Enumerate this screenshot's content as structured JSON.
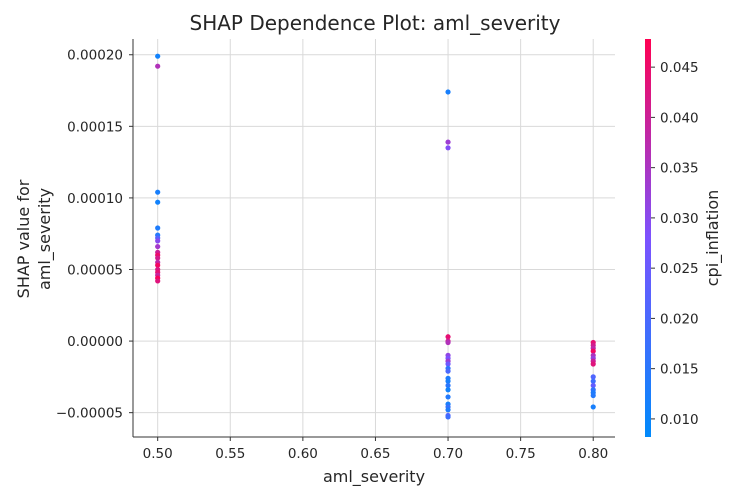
{
  "chart_data": {
    "type": "scatter",
    "title": "SHAP Dependence Plot: aml_severity",
    "xlabel": "aml_severity",
    "ylabel_lines": [
      "SHAP value for",
      "aml_severity"
    ],
    "xlim": [
      0.483,
      0.815
    ],
    "ylim": [
      -6.7e-05,
      0.000211
    ],
    "x_ticks": [
      0.5,
      0.55,
      0.6,
      0.65,
      0.7,
      0.75,
      0.8
    ],
    "x_tick_labels": [
      "0.50",
      "0.55",
      "0.60",
      "0.65",
      "0.70",
      "0.75",
      "0.80"
    ],
    "y_ticks": [
      -5e-05,
      0.0,
      5e-05,
      0.0001,
      0.00015,
      0.0002
    ],
    "y_tick_labels": [
      "−0.00005",
      "0.00000",
      "0.00005",
      "0.00010",
      "0.00015",
      "0.00020"
    ],
    "grid": true,
    "colorbar": {
      "label": "cpi_inflation",
      "range": [
        0.0082,
        0.0478
      ],
      "ticks": [
        0.01,
        0.015,
        0.02,
        0.025,
        0.03,
        0.035,
        0.04,
        0.045
      ],
      "tick_labels": [
        "0.010",
        "0.015",
        "0.020",
        "0.025",
        "0.030",
        "0.035",
        "0.040",
        "0.045"
      ],
      "colors": [
        "#008afb",
        "#7c52ff",
        "#ff0052"
      ]
    },
    "points": [
      {
        "x": 0.5,
        "y": 0.000199,
        "c": 0.011
      },
      {
        "x": 0.5,
        "y": 0.000192,
        "c": 0.036
      },
      {
        "x": 0.5,
        "y": 0.000104,
        "c": 0.012
      },
      {
        "x": 0.5,
        "y": 9.7e-05,
        "c": 0.011
      },
      {
        "x": 0.5,
        "y": 7.9e-05,
        "c": 0.013
      },
      {
        "x": 0.5,
        "y": 7.4e-05,
        "c": 0.014
      },
      {
        "x": 0.5,
        "y": 7.2e-05,
        "c": 0.022
      },
      {
        "x": 0.5,
        "y": 7e-05,
        "c": 0.03
      },
      {
        "x": 0.5,
        "y": 6.6e-05,
        "c": 0.034
      },
      {
        "x": 0.5,
        "y": 6.2e-05,
        "c": 0.04
      },
      {
        "x": 0.5,
        "y": 6e-05,
        "c": 0.045
      },
      {
        "x": 0.5,
        "y": 5.8e-05,
        "c": 0.041
      },
      {
        "x": 0.5,
        "y": 5.5e-05,
        "c": 0.038
      },
      {
        "x": 0.5,
        "y": 5.3e-05,
        "c": 0.046
      },
      {
        "x": 0.5,
        "y": 5e-05,
        "c": 0.042
      },
      {
        "x": 0.5,
        "y": 4.8e-05,
        "c": 0.044
      },
      {
        "x": 0.5,
        "y": 4.6e-05,
        "c": 0.039
      },
      {
        "x": 0.5,
        "y": 4.4e-05,
        "c": 0.047
      },
      {
        "x": 0.5,
        "y": 4.2e-05,
        "c": 0.043
      },
      {
        "x": 0.7,
        "y": 0.000174,
        "c": 0.012
      },
      {
        "x": 0.7,
        "y": 0.000139,
        "c": 0.033
      },
      {
        "x": 0.7,
        "y": 0.000135,
        "c": 0.029
      },
      {
        "x": 0.7,
        "y": 3e-06,
        "c": 0.044
      },
      {
        "x": 0.7,
        "y": 0.0,
        "c": 0.04
      },
      {
        "x": 0.7,
        "y": -1e-06,
        "c": 0.036
      },
      {
        "x": 0.7,
        "y": -1e-05,
        "c": 0.031
      },
      {
        "x": 0.7,
        "y": -1.2e-05,
        "c": 0.028
      },
      {
        "x": 0.7,
        "y": -1.4e-05,
        "c": 0.033
      },
      {
        "x": 0.7,
        "y": -1.6e-05,
        "c": 0.026
      },
      {
        "x": 0.7,
        "y": -1.9e-05,
        "c": 0.016
      },
      {
        "x": 0.7,
        "y": -2.1e-05,
        "c": 0.02
      },
      {
        "x": 0.7,
        "y": -2.6e-05,
        "c": 0.013
      },
      {
        "x": 0.7,
        "y": -2.8e-05,
        "c": 0.012
      },
      {
        "x": 0.7,
        "y": -3.1e-05,
        "c": 0.015
      },
      {
        "x": 0.7,
        "y": -3.4e-05,
        "c": 0.011
      },
      {
        "x": 0.7,
        "y": -3.9e-05,
        "c": 0.014
      },
      {
        "x": 0.7,
        "y": -4.4e-05,
        "c": 0.012
      },
      {
        "x": 0.7,
        "y": -4.6e-05,
        "c": 0.017
      },
      {
        "x": 0.7,
        "y": -4.8e-05,
        "c": 0.013
      },
      {
        "x": 0.7,
        "y": -5.2e-05,
        "c": 0.022
      },
      {
        "x": 0.7,
        "y": -5.3e-05,
        "c": 0.018
      },
      {
        "x": 0.8,
        "y": -1e-06,
        "c": 0.044
      },
      {
        "x": 0.8,
        "y": -3e-06,
        "c": 0.041
      },
      {
        "x": 0.8,
        "y": -5e-06,
        "c": 0.038
      },
      {
        "x": 0.8,
        "y": -7e-06,
        "c": 0.046
      },
      {
        "x": 0.8,
        "y": -1e-05,
        "c": 0.036
      },
      {
        "x": 0.8,
        "y": -1.2e-05,
        "c": 0.032
      },
      {
        "x": 0.8,
        "y": -1.4e-05,
        "c": 0.04
      },
      {
        "x": 0.8,
        "y": -1.6e-05,
        "c": 0.043
      },
      {
        "x": 0.8,
        "y": -2.5e-05,
        "c": 0.021
      },
      {
        "x": 0.8,
        "y": -2.8e-05,
        "c": 0.018
      },
      {
        "x": 0.8,
        "y": -3.1e-05,
        "c": 0.024
      },
      {
        "x": 0.8,
        "y": -3.4e-05,
        "c": 0.016
      },
      {
        "x": 0.8,
        "y": -3.6e-05,
        "c": 0.013
      },
      {
        "x": 0.8,
        "y": -3.8e-05,
        "c": 0.014
      },
      {
        "x": 0.8,
        "y": -4.6e-05,
        "c": 0.012
      }
    ]
  }
}
